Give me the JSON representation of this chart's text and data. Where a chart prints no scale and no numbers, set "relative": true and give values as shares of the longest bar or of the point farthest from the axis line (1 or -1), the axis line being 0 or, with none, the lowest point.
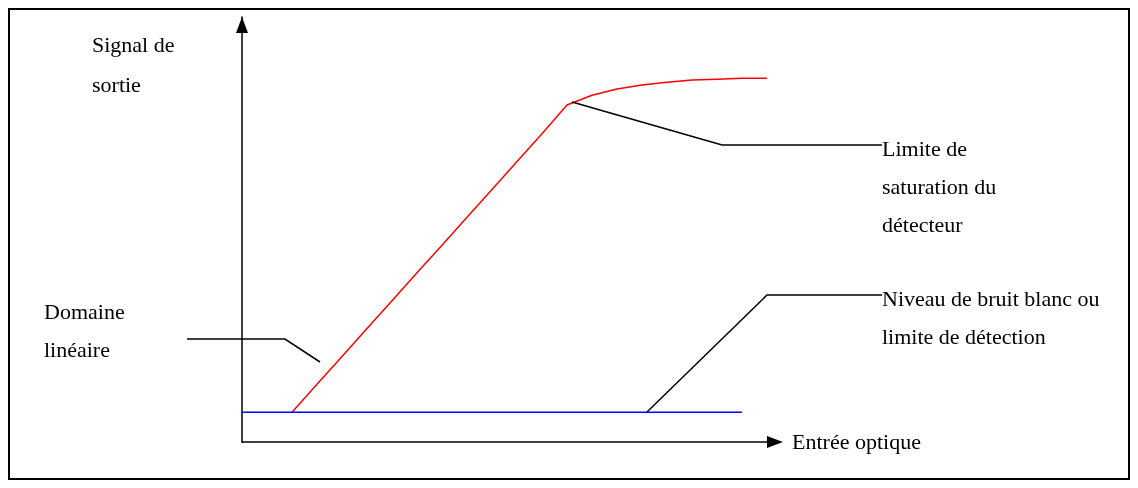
{
  "chart_data": {
    "type": "line",
    "relative": true,
    "xlabel": "Entrée optique",
    "ylabel": "Signal de sortie",
    "categories": [
      null,
      null,
      null,
      null,
      null,
      null,
      null,
      null,
      null,
      null,
      null,
      null,
      null,
      null,
      null,
      null,
      null,
      null,
      null,
      null,
      null,
      null
    ],
    "series": [
      {
        "color": "#ff0000",
        "values": [
          null,
          null,
          0.082,
          0.159,
          0.235,
          0.312,
          0.388,
          0.465,
          0.541,
          0.618,
          0.694,
          0.771,
          0.847,
          0.926,
          0.953,
          0.97,
          0.981,
          0.989,
          0.995,
          0.997,
          1,
          1
        ]
      },
      {
        "color": "#0000ff",
        "values": [
          0.082,
          0.082,
          0.082,
          0.082,
          0.082,
          0.082,
          0.082,
          0.082,
          0.082,
          0.082,
          0.082,
          0.082,
          0.082,
          0.082,
          0.082,
          0.082,
          0.082,
          0.082,
          0.082,
          0.082,
          0.082,
          null
        ]
      }
    ],
    "annotations": [
      "Limite de saturation du détecteur",
      "Domaine linéaire",
      "Niveau de bruit blanc ou limite de détection"
    ],
    "marker": "none",
    "grid": false
  }
}
